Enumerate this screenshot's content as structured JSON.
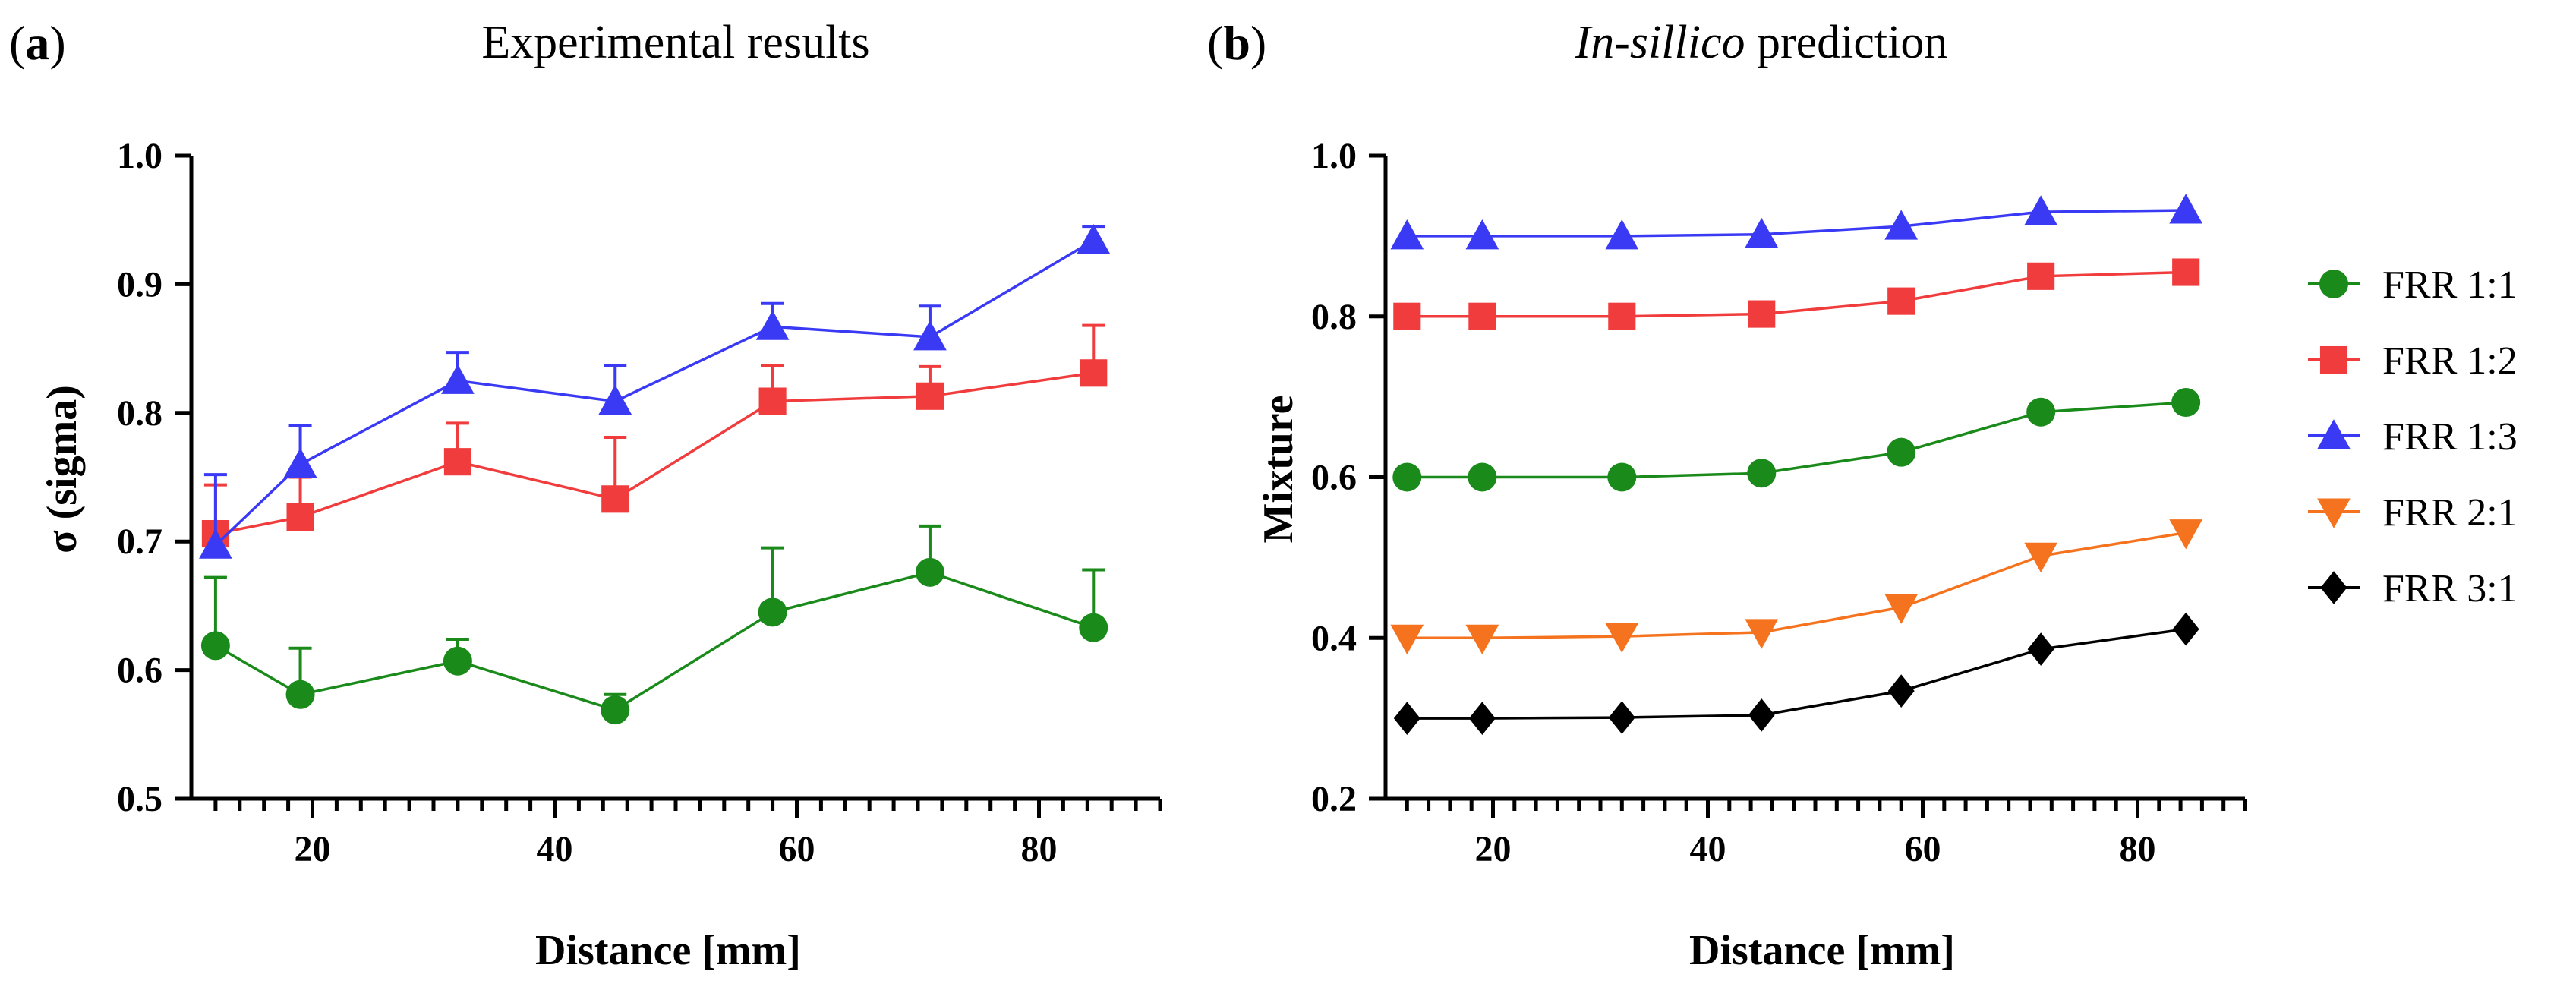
{
  "figure": {
    "panel_a": {
      "letter": "a",
      "title": "Experimental results"
    },
    "panel_b": {
      "letter": "b",
      "title_italic": "In-sillico",
      "title_rest": " prediction"
    }
  },
  "colors": {
    "FRR 1:1": "#1a8a1a",
    "FRR 1:2": "#f03c3c",
    "FRR 1:3": "#3a3af5",
    "FRR 2:1": "#f5731e",
    "FRR 3:1": "#000000"
  },
  "chart_data": [
    {
      "type": "line",
      "title": "Experimental results",
      "xlabel": "Distance [mm]",
      "ylabel": "σ (sigma)",
      "xlim": [
        10,
        90
      ],
      "ylim": [
        0.5,
        1.0
      ],
      "xticks": [
        20,
        40,
        60,
        80
      ],
      "yticks": [
        "0.5",
        "0.6",
        "0.7",
        "0.8",
        "0.9",
        "1.0"
      ],
      "x": [
        12,
        19,
        32,
        45,
        58,
        71,
        84.5
      ],
      "series": [
        {
          "name": "FRR 1:1",
          "marker": "circle",
          "values": [
            0.619,
            0.581,
            0.607,
            0.569,
            0.645,
            0.676,
            0.633
          ],
          "error": [
            0.053,
            0.036,
            0.017,
            0.012,
            0.05,
            0.036,
            0.045
          ]
        },
        {
          "name": "FRR 1:2",
          "marker": "square",
          "values": [
            0.706,
            0.719,
            0.762,
            0.733,
            0.809,
            0.813,
            0.831
          ],
          "error": [
            0.038,
            0.031,
            0.03,
            0.048,
            0.028,
            0.023,
            0.037
          ]
        },
        {
          "name": "FRR 1:3",
          "marker": "triangle-up",
          "values": [
            0.697,
            0.76,
            0.825,
            0.809,
            0.867,
            0.859,
            0.934
          ],
          "error": [
            0.055,
            0.03,
            0.022,
            0.028,
            0.018,
            0.024,
            0.011
          ]
        }
      ]
    },
    {
      "type": "line",
      "title": "In-sillico prediction",
      "xlabel": "Distance [mm]",
      "ylabel": "Mixture",
      "xlim": [
        10,
        90
      ],
      "ylim": [
        0.2,
        1.0
      ],
      "xticks": [
        20,
        40,
        60,
        80
      ],
      "yticks": [
        "0.2",
        "0.4",
        "0.6",
        "0.8",
        "1.0"
      ],
      "x": [
        12,
        19,
        32,
        45,
        58,
        71,
        84.5
      ],
      "series": [
        {
          "name": "FRR 1:1",
          "marker": "circle",
          "values": [
            0.6,
            0.6,
            0.6,
            0.605,
            0.631,
            0.681,
            0.693
          ]
        },
        {
          "name": "FRR 1:2",
          "marker": "square",
          "values": [
            0.8,
            0.8,
            0.8,
            0.803,
            0.819,
            0.85,
            0.855
          ]
        },
        {
          "name": "FRR 1:3",
          "marker": "triangle-up",
          "values": [
            0.9,
            0.9,
            0.9,
            0.902,
            0.912,
            0.93,
            0.932
          ]
        },
        {
          "name": "FRR 2:1",
          "marker": "triangle-down",
          "values": [
            0.4,
            0.4,
            0.402,
            0.407,
            0.438,
            0.502,
            0.531
          ]
        },
        {
          "name": "FRR 3:1",
          "marker": "diamond",
          "values": [
            0.3,
            0.3,
            0.301,
            0.304,
            0.334,
            0.386,
            0.411
          ]
        }
      ],
      "legend": {
        "placement": "right",
        "entries": [
          {
            "label": "FRR 1:1",
            "marker": "circle"
          },
          {
            "label": "FRR 1:2",
            "marker": "square"
          },
          {
            "label": "FRR 1:3",
            "marker": "triangle-up"
          },
          {
            "label": "FRR 2:1",
            "marker": "triangle-down"
          },
          {
            "label": "FRR 3:1",
            "marker": "diamond"
          }
        ]
      }
    }
  ]
}
